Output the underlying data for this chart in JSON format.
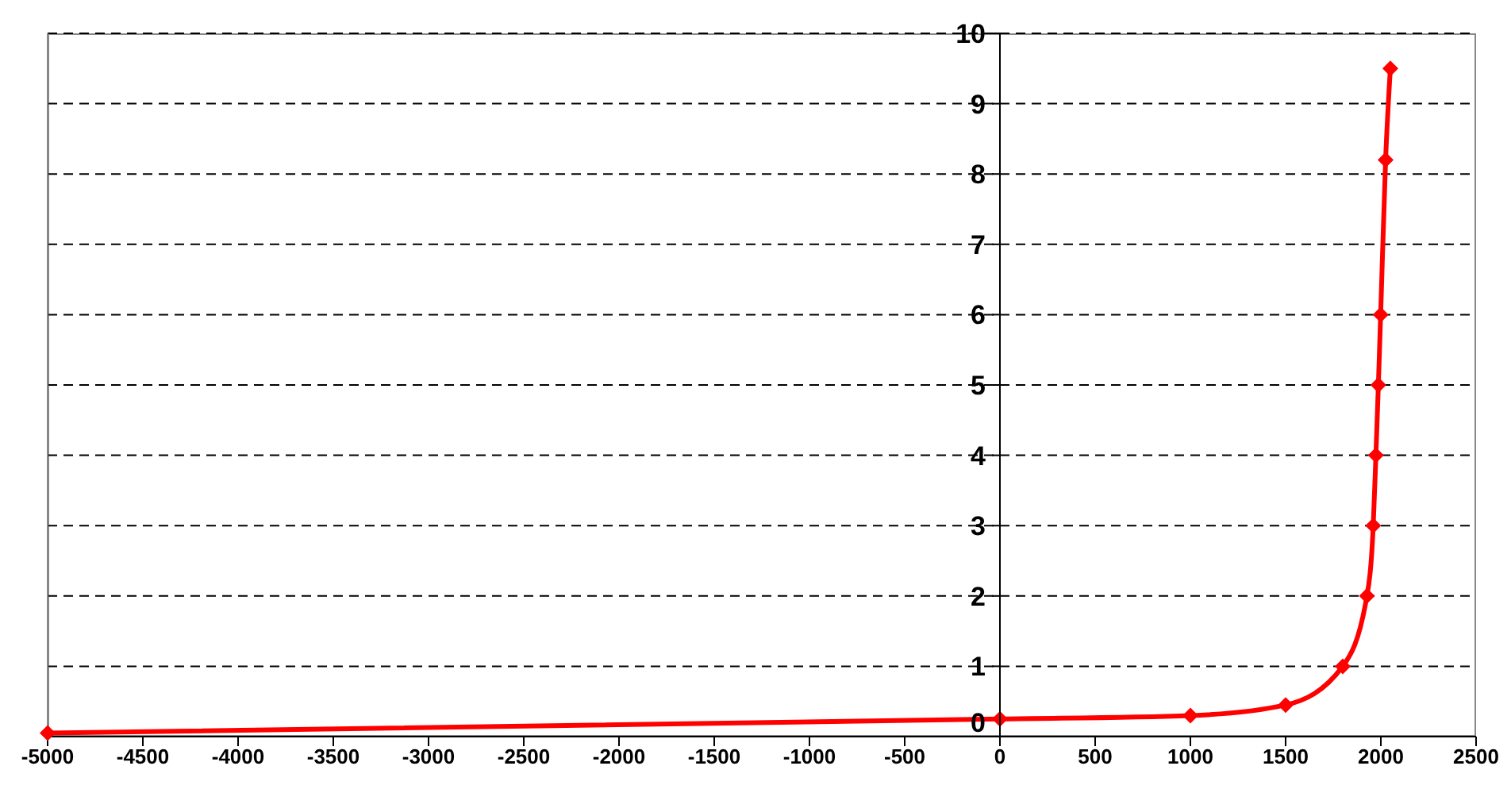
{
  "chart_data": {
    "type": "line",
    "x": [
      -5000,
      0,
      1000,
      1500,
      1800,
      1927,
      1960,
      1974,
      1987,
      1999,
      2025,
      2050
    ],
    "series": [
      {
        "color": "#ff0000",
        "values": [
          0.05,
          0.25,
          0.3,
          0.45,
          1,
          2,
          3,
          4,
          5,
          6,
          8.2,
          9.5
        ]
      }
    ],
    "xlim": [
      -5000,
      2500
    ],
    "xticks": [
      -5000,
      -4500,
      -4000,
      -3500,
      -3000,
      -2500,
      -2000,
      -1500,
      -1000,
      -500,
      0,
      500,
      1000,
      1500,
      2000,
      2500
    ],
    "ylim": [
      0,
      10
    ],
    "yticks": [
      0,
      1,
      2,
      3,
      4,
      5,
      6,
      7,
      8,
      9,
      10
    ],
    "grid": "y",
    "marker": "diamond",
    "line_style": "solid"
  }
}
